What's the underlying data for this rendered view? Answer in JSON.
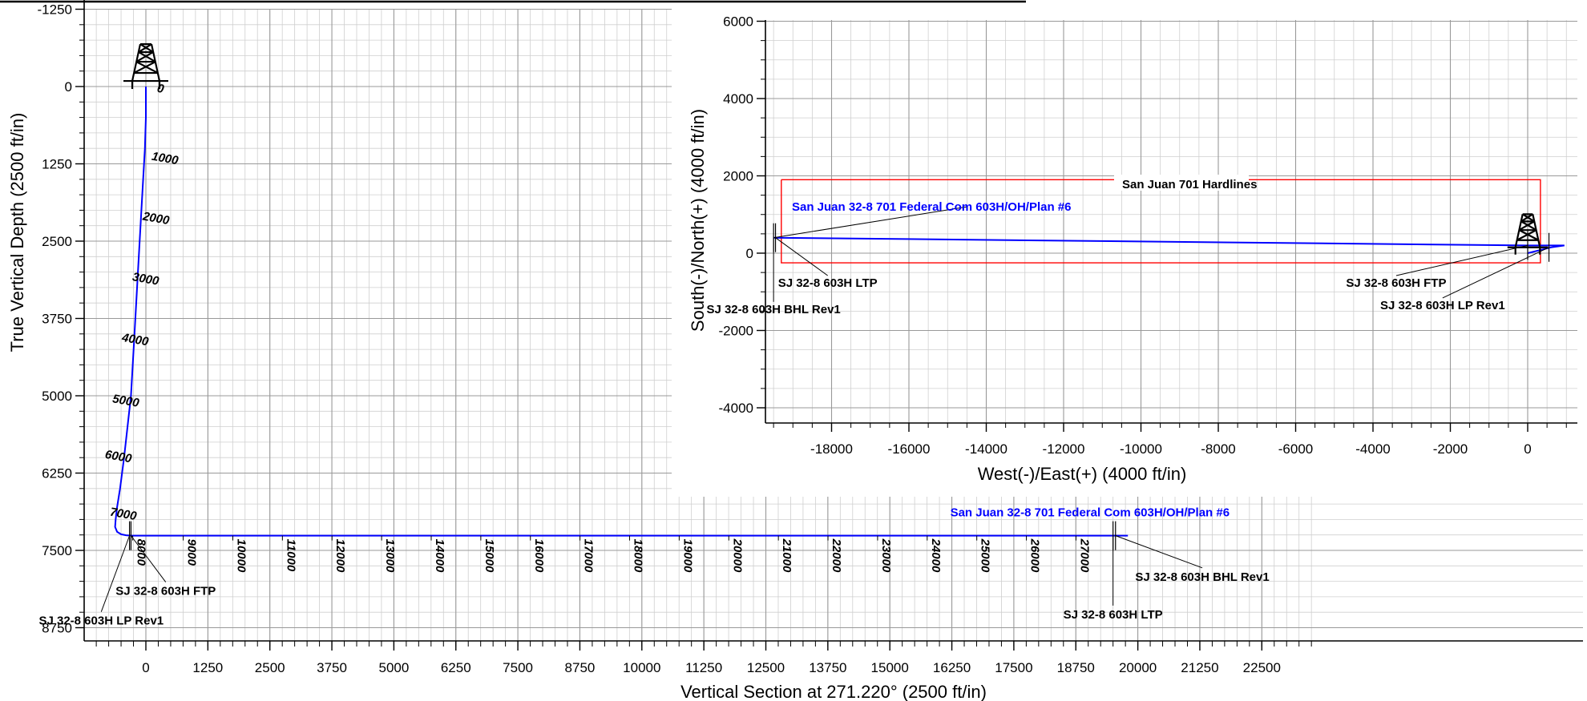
{
  "colors": {
    "well_path": "#0000ff",
    "hardlines": "#ff0000",
    "grid_major": "#999999",
    "grid_minor": "#cfcfcf",
    "axis": "#000000"
  },
  "icons": {
    "rig": "derrick-icon"
  },
  "chart_data": [
    {
      "type": "line",
      "name": "vertical-section",
      "xlabel": "Vertical Section at 271.220° (2500 ft/in)",
      "ylabel": "True Vertical Depth (2500 ft/in)",
      "xlim": [
        -2500,
        23500
      ],
      "ylim": [
        -1250,
        8750
      ],
      "y_inverted": true,
      "grid": true,
      "x_ticks": [
        "0",
        "1250",
        "2500",
        "3750",
        "5000",
        "6250",
        "7500",
        "8750",
        "10000",
        "11250",
        "12500",
        "13750",
        "15000",
        "16250",
        "17500",
        "18750",
        "20000",
        "21250",
        "22500"
      ],
      "x_tick_values": [
        0,
        1250,
        2500,
        3750,
        5000,
        6250,
        7500,
        8750,
        10000,
        11250,
        12500,
        13750,
        15000,
        16250,
        17500,
        18750,
        20000,
        21250,
        22500
      ],
      "y_ticks": [
        "-1250",
        "0",
        "1250",
        "2500",
        "3750",
        "5000",
        "6250",
        "7500",
        "8750"
      ],
      "y_tick_values": [
        -1250,
        0,
        1250,
        2500,
        3750,
        5000,
        6250,
        7500,
        8750
      ],
      "plan_label": "San Juan 32-8 701 Federal Com 603H/OH/Plan #6",
      "series": [
        {
          "x": [
            0,
            0,
            -20,
            -90,
            -160,
            -230,
            -300,
            -370,
            -440,
            -520,
            -580,
            -610,
            -620,
            -580,
            -500,
            -400,
            -300,
            0,
            2000,
            6000,
            10000,
            14000,
            18000,
            19500,
            19800
          ],
          "y": [
            0,
            500,
            1000,
            2000,
            3000,
            4000,
            5000,
            5500,
            6000,
            6500,
            6800,
            7000,
            7120,
            7200,
            7240,
            7255,
            7262,
            7262,
            7262,
            7262,
            7262,
            7262,
            7262,
            7262,
            7262
          ]
        }
      ],
      "md_labels": [
        {
          "text": "0",
          "x": 170,
          "y": 0
        },
        {
          "text": "1000",
          "x": 60,
          "y": 1100
        },
        {
          "text": "2000",
          "x": -120,
          "y": 2070
        },
        {
          "text": "3000",
          "x": -330,
          "y": 3050
        },
        {
          "text": "4000",
          "x": -540,
          "y": 4030
        },
        {
          "text": "5000",
          "x": -730,
          "y": 5020
        },
        {
          "text": "6000",
          "x": -880,
          "y": 5920
        },
        {
          "text": "7000",
          "x": -780,
          "y": 6850
        }
      ],
      "sidetrack_md_labels": [
        "8000",
        "9000",
        "10000",
        "11000",
        "12000",
        "13000",
        "14000",
        "15000",
        "16000",
        "17000",
        "18000",
        "19000",
        "20000",
        "21000",
        "22000",
        "23000",
        "24000",
        "25000",
        "26000",
        "27000"
      ],
      "sidetrack_md_x": [
        -170,
        850,
        1850,
        2850,
        3850,
        4850,
        5850,
        6850,
        7850,
        8850,
        9850,
        10850,
        11850,
        12850,
        13850,
        14850,
        15850,
        16850,
        17850,
        18850
      ],
      "targets": [
        {
          "text": "SJ 32-8 603H FTP",
          "x": -300,
          "y": 7262,
          "label_x": 400,
          "label_y": 8220
        },
        {
          "text": "SJ 32-8 603H LP Rev1",
          "x": -330,
          "y": 7262,
          "label_x": -900,
          "label_y": 8700
        },
        {
          "text": "SJ 32-8 603H BHL Rev1",
          "x": 19550,
          "y": 7262,
          "label_x": 21300,
          "label_y": 7990
        },
        {
          "text": "SJ 32-8 603H LTP",
          "x": 19500,
          "y": 7262,
          "label_x": 19500,
          "label_y": 8600
        }
      ]
    },
    {
      "type": "line",
      "name": "plan-view",
      "xlabel": "West(-)/East(+) (4000 ft/in)",
      "ylabel": "South(-)/North(+) (4000 ft/in)",
      "xlim": [
        -20000,
        1000
      ],
      "ylim": [
        -4400,
        6100
      ],
      "grid": true,
      "x_ticks": [
        "-18000",
        "-16000",
        "-14000",
        "-12000",
        "-10000",
        "-8000",
        "-6000",
        "-4000",
        "-2000",
        "0"
      ],
      "x_tick_values": [
        -18000,
        -16000,
        -14000,
        -12000,
        -10000,
        -8000,
        -6000,
        -4000,
        -2000,
        0
      ],
      "y_ticks": [
        "6000",
        "4000",
        "2000",
        "0",
        "-2000",
        "-4000"
      ],
      "y_tick_values": [
        6000,
        4000,
        2000,
        0,
        -2000,
        -4000
      ],
      "plan_label": "San Juan 32-8 701 Federal Com 603H/OH/Plan #6",
      "series": [
        {
          "x": [
            0,
            600,
            950,
            0,
            -19500
          ],
          "y": [
            0,
            150,
            200,
            200,
            400
          ]
        }
      ],
      "hardlines": {
        "label": "San Juan 701 Hardlines",
        "x": [
          -19300,
          330,
          330,
          -19300,
          -19300
        ],
        "y": [
          1900,
          1900,
          -250,
          -250,
          1900
        ]
      },
      "targets": [
        {
          "text": "SJ 32-8 603H LTP",
          "x": -19450,
          "y": 400,
          "label_x": -18100,
          "label_y": -870
        },
        {
          "text": "SJ 32-8 603H BHL Rev1",
          "x": -19500,
          "y": 400,
          "label_x": -19500,
          "label_y": -1550
        },
        {
          "text": "SJ 32-8 603H FTP",
          "x": 0,
          "y": 200,
          "label_x": -3400,
          "label_y": -870
        },
        {
          "text": "SJ 32-8 603H LP Rev1",
          "x": 550,
          "y": 150,
          "label_x": -2200,
          "label_y": -1450
        }
      ]
    }
  ]
}
